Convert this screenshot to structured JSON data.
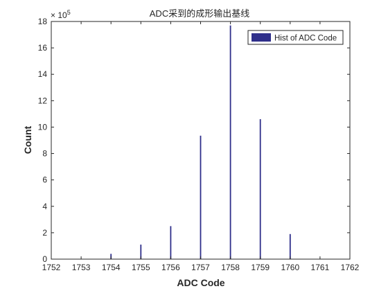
{
  "chart_data": {
    "type": "bar",
    "title": "ADC采到的成形输出基线",
    "xlabel": "ADC Code",
    "ylabel": "Count",
    "y_exponent_label": "× 10",
    "y_exponent_power": "5",
    "xlim": [
      1752,
      1762
    ],
    "ylim": [
      0,
      18
    ],
    "x_ticks": [
      1752,
      1753,
      1754,
      1755,
      1756,
      1757,
      1758,
      1759,
      1760,
      1761,
      1762
    ],
    "y_ticks": [
      0,
      2,
      4,
      6,
      8,
      10,
      12,
      14,
      16,
      18
    ],
    "grid": false,
    "legend": {
      "label": "Hist of ADC Code",
      "placement": "top-right"
    },
    "bar_color": "#2e2e8a",
    "series": [
      {
        "name": "Hist of ADC Code",
        "x": [
          1754,
          1755,
          1756,
          1757,
          1758,
          1759,
          1760
        ],
        "values": [
          0.4,
          1.1,
          2.5,
          9.35,
          17.7,
          10.6,
          1.9
        ]
      }
    ]
  }
}
